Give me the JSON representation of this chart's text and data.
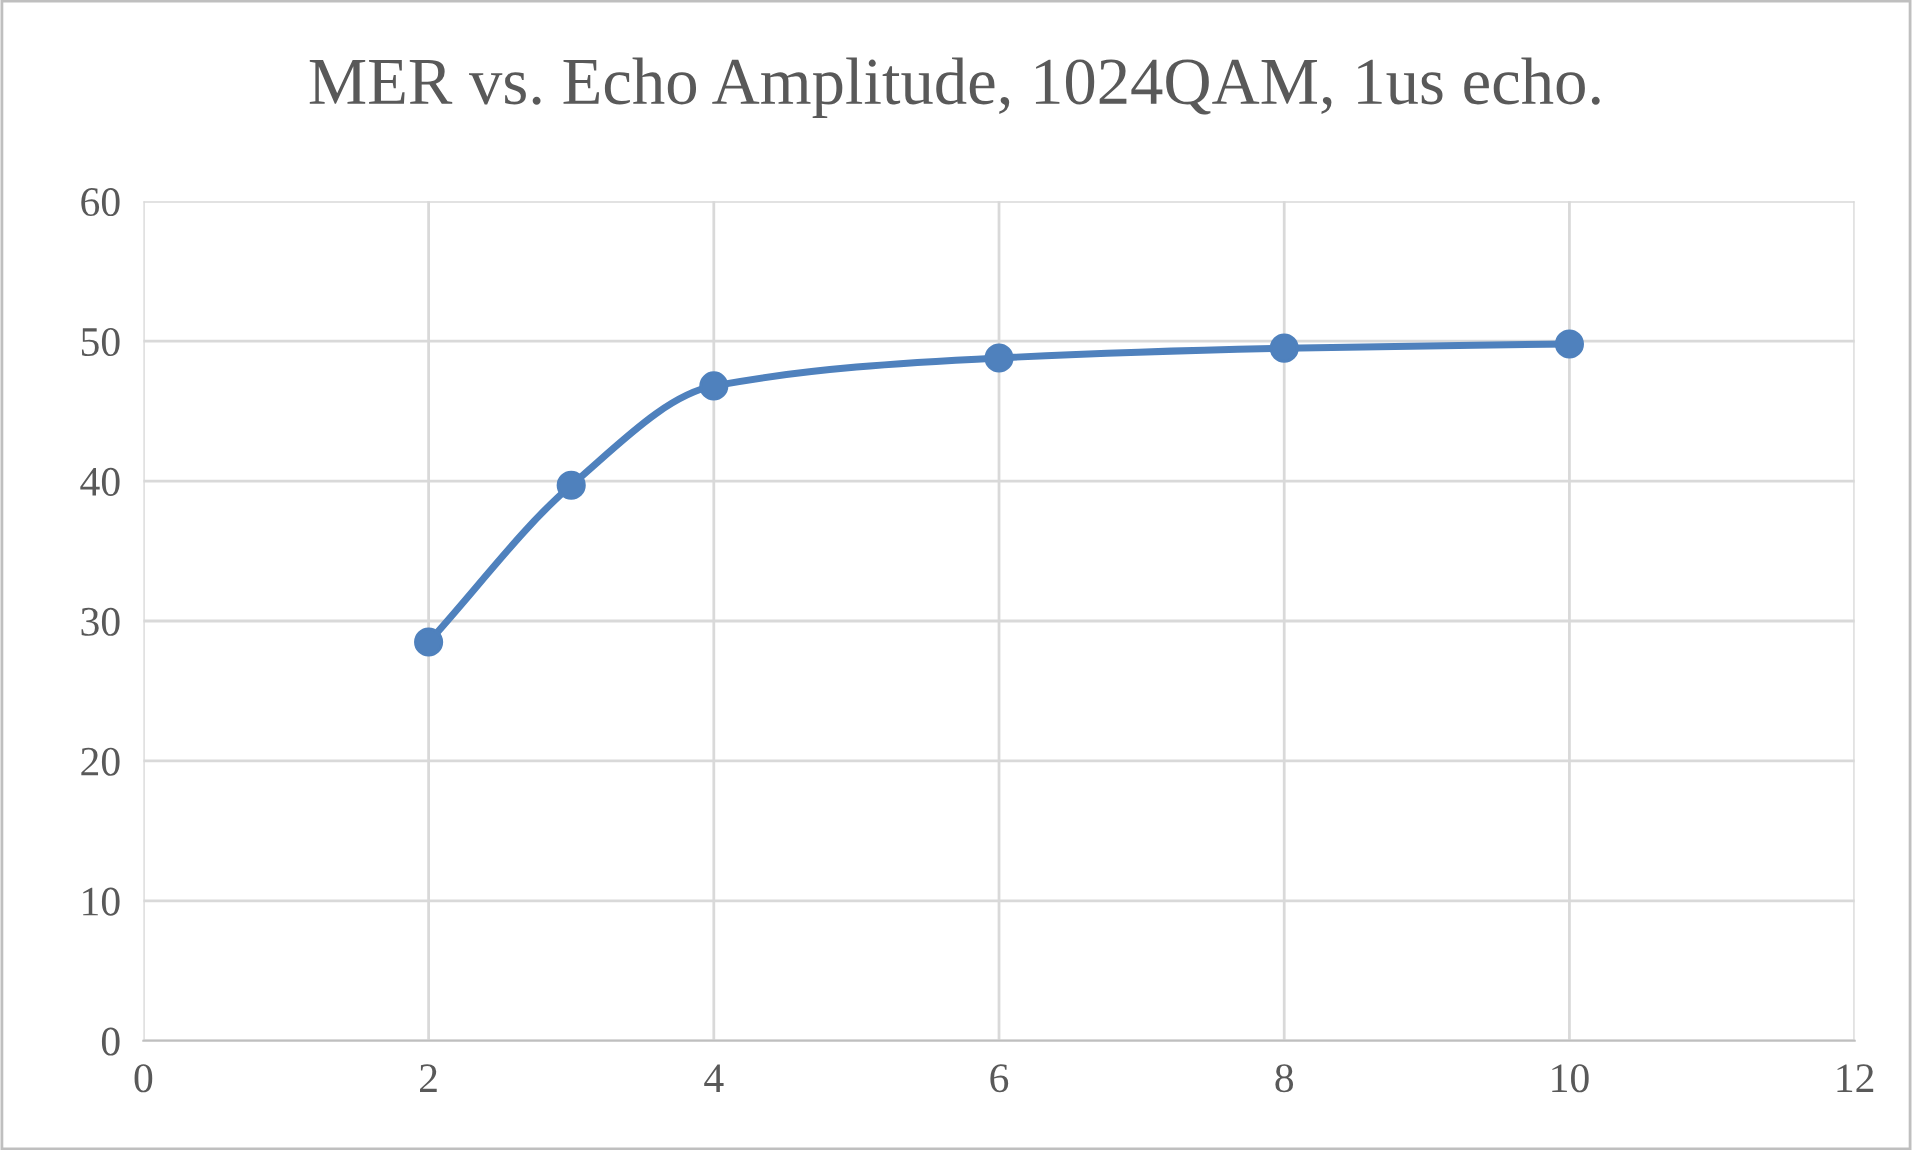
{
  "chart_data": {
    "type": "line",
    "title": "MER vs. Echo Amplitude, 1024QAM, 1us echo.",
    "x": [
      2,
      3,
      4,
      6,
      8,
      10
    ],
    "series": [
      {
        "color": "#4f81bd",
        "values": [
          28.5,
          39.7,
          46.8,
          48.8,
          49.5,
          49.8
        ]
      }
    ],
    "xlim": [
      0,
      12
    ],
    "xticks": [
      0,
      2,
      4,
      6,
      8,
      10,
      12
    ],
    "ylim": [
      0,
      60
    ],
    "yticks": [
      0,
      10,
      20,
      30,
      40,
      50,
      60
    ],
    "grid": true,
    "marker": "circle",
    "line_style": "solid"
  }
}
